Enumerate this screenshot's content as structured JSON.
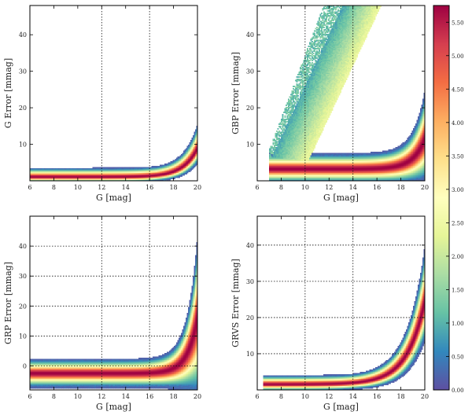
{
  "colorbar": {
    "vmin": 0.0,
    "vmax": 5.75,
    "ticks": [
      "0.00",
      "0.50",
      "1.00",
      "1.50",
      "2.00",
      "2.50",
      "3.00",
      "3.50",
      "4.00",
      "4.50",
      "5.00",
      "5.50"
    ],
    "tick_values": [
      0.0,
      0.5,
      1.0,
      1.5,
      2.0,
      2.5,
      3.0,
      3.5,
      4.0,
      4.5,
      5.0,
      5.5
    ],
    "colormap": [
      "#5e4fa2",
      "#3288bd",
      "#66c2a5",
      "#abdda4",
      "#e6f598",
      "#ffffbf",
      "#fee08b",
      "#fdae61",
      "#f46d43",
      "#d53e4f",
      "#9e0142"
    ]
  },
  "chart_data": [
    {
      "type": "heatmap",
      "name": "G error vs G",
      "xlabel": "G [mag]",
      "ylabel": "G Error [mmag]",
      "xlim": [
        6,
        20
      ],
      "ylim": [
        0,
        48
      ],
      "xticks": [
        "6",
        "8",
        "10",
        "12",
        "14",
        "16",
        "18",
        "20"
      ],
      "xtick_values": [
        6,
        8,
        10,
        12,
        14,
        16,
        18,
        20
      ],
      "yticks": [
        "10",
        "20",
        "30",
        "40"
      ],
      "ytick_values": [
        10,
        20,
        30,
        40
      ],
      "vlines": [
        12,
        16
      ],
      "hgrid": false,
      "error_model": {
        "base": 1.0,
        "amp": 4.0,
        "knee": 19.2,
        "scale": 1.2
      },
      "spread": 0.9,
      "core_min": 1.0,
      "low_tail": 0.6,
      "x_min_data": 6.0,
      "noise_region": null
    },
    {
      "type": "heatmap",
      "name": "GBP error vs G",
      "xlabel": "G [mag]",
      "ylabel": "GBP Error [mmag]",
      "xlim": [
        6,
        20
      ],
      "ylim": [
        0,
        48
      ],
      "xticks": [
        "6",
        "8",
        "10",
        "12",
        "14",
        "16",
        "18",
        "20"
      ],
      "xtick_values": [
        6,
        8,
        10,
        12,
        14,
        16,
        18,
        20
      ],
      "yticks": [
        "10",
        "20",
        "30",
        "40"
      ],
      "ytick_values": [
        10,
        20,
        30,
        40
      ],
      "vlines": [
        10,
        14
      ],
      "hgrid": false,
      "error_model": {
        "base": 3.2,
        "amp": 3.0,
        "knee": 19.0,
        "scale": 1.0
      },
      "spread": 1.7,
      "core_min": 1.0,
      "low_tail": 0.9,
      "x_min_data": 7.0,
      "noise_region": {
        "x_start": 7.0,
        "x_end": 20.0,
        "base": 5.0,
        "slope": 7.0,
        "width_left": 0.4,
        "width_right": 3.2
      }
    },
    {
      "type": "heatmap",
      "name": "GRP error vs G",
      "xlabel": "G [mag]",
      "ylabel": "GRP Error [mmag]",
      "xlim": [
        6,
        20
      ],
      "ylim": [
        -8,
        50
      ],
      "xticks": [
        "6",
        "8",
        "10",
        "12",
        "14",
        "16",
        "18",
        "20"
      ],
      "xtick_values": [
        6,
        8,
        10,
        12,
        14,
        16,
        18,
        20
      ],
      "yticks": [
        "0",
        "10",
        "20",
        "30",
        "40"
      ],
      "ytick_values": [
        0,
        10,
        20,
        30,
        40
      ],
      "vlines": [
        12,
        16
      ],
      "hgrid": true,
      "error_model": {
        "base": -2.5,
        "amp": 4.5,
        "knee": 18.8,
        "scale": 0.85
      },
      "spread": 1.9,
      "core_min": 1.5,
      "low_tail": 1.0,
      "x_min_data": 6.0,
      "noise_region": null
    },
    {
      "type": "heatmap",
      "name": "GRVS error vs G",
      "xlabel": "G [mag]",
      "ylabel": "GRVS Error [mmag]",
      "xlim": [
        6,
        20
      ],
      "ylim": [
        0,
        48
      ],
      "xticks": [
        "6",
        "8",
        "10",
        "12",
        "14",
        "16",
        "18",
        "20"
      ],
      "xtick_values": [
        6,
        8,
        10,
        12,
        14,
        16,
        18,
        20
      ],
      "yticks": [
        "10",
        "20",
        "30",
        "40"
      ],
      "ytick_values": [
        10,
        20,
        30,
        40
      ],
      "vlines": [
        10,
        14
      ],
      "hgrid": true,
      "error_model": {
        "base": 1.5,
        "amp": 6.0,
        "knee": 18.0,
        "scale": 1.5
      },
      "spread": 0.9,
      "core_min": 1.0,
      "low_tail": 0.7,
      "x_min_data": 6.5,
      "noise_region": null
    }
  ]
}
